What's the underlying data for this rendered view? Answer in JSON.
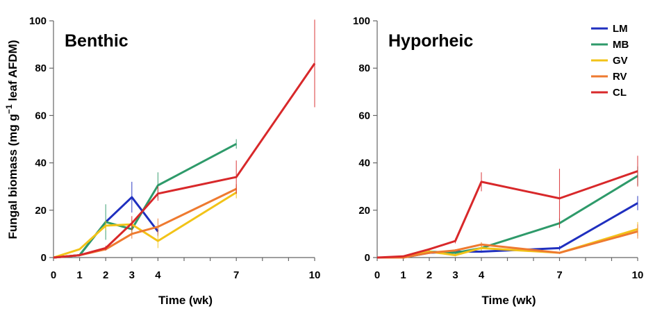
{
  "chart_data": {
    "type": "line",
    "ylabel_html": [
      "Fungal biomass (mg g",
      "−1",
      " leaf AFDM)"
    ],
    "xlabel": "Time (wk)",
    "xticks": [
      0,
      1,
      2,
      3,
      4,
      7,
      10
    ],
    "xlim": [
      0,
      10
    ],
    "ylim": [
      0,
      100
    ],
    "yticks": [
      0,
      20,
      40,
      60,
      80,
      100
    ],
    "legend_position": "top-right of right panel",
    "legend": [
      "LM",
      "MB",
      "GV",
      "RV",
      "CL"
    ],
    "colors": {
      "LM": "#1f2fbf",
      "MB": "#2e9a6a",
      "GV": "#f2c318",
      "RV": "#ee7a30",
      "CL": "#d8282a"
    },
    "panels": [
      {
        "title": "Benthic",
        "series": [
          {
            "name": "LM",
            "x": [
              0,
              1,
              2,
              3,
              4
            ],
            "y": [
              0,
              1,
              15,
              25.5,
              11
            ],
            "err": [
              0,
              0,
              0,
              6.5,
              2
            ]
          },
          {
            "name": "MB",
            "x": [
              0,
              1,
              2,
              3,
              4,
              7
            ],
            "y": [
              0,
              1,
              15,
              12,
              30.5,
              48
            ],
            "err": [
              0,
              0,
              7.5,
              2,
              5.5,
              2
            ]
          },
          {
            "name": "GV",
            "x": [
              0,
              1,
              2,
              3,
              4,
              7
            ],
            "y": [
              0,
              3.5,
              13.5,
              14,
              7,
              27.5
            ],
            "err": [
              0,
              0,
              2,
              2,
              3,
              2.5
            ]
          },
          {
            "name": "RV",
            "x": [
              0,
              1,
              2,
              3,
              4,
              7
            ],
            "y": [
              0,
              1,
              3.5,
              10,
              13,
              29
            ],
            "err": [
              0,
              0,
              0.5,
              2,
              3.5,
              2
            ]
          },
          {
            "name": "CL",
            "x": [
              0,
              1,
              2,
              3,
              4,
              7,
              10
            ],
            "y": [
              0,
              1,
              4,
              14.5,
              27,
              34,
              82
            ],
            "err": [
              0,
              0,
              1,
              3,
              3,
              7,
              18.5
            ]
          }
        ]
      },
      {
        "title": "Hyporheic",
        "series": [
          {
            "name": "LM",
            "x": [
              0,
              1,
              2,
              3,
              4,
              7,
              10
            ],
            "y": [
              0,
              0,
              2,
              2.5,
              2.5,
              4,
              23
            ],
            "err": [
              0,
              0,
              0,
              0.5,
              0.5,
              1,
              3
            ]
          },
          {
            "name": "MB",
            "x": [
              0,
              1,
              2,
              3,
              4,
              7,
              10
            ],
            "y": [
              0,
              0,
              2.5,
              2,
              4,
              14.5,
              34.5
            ],
            "err": [
              0,
              0,
              0.5,
              0.5,
              1,
              2,
              4
            ]
          },
          {
            "name": "GV",
            "x": [
              0,
              1,
              2,
              3,
              4,
              7,
              10
            ],
            "y": [
              0,
              0,
              2.5,
              1,
              4,
              2,
              12
            ],
            "err": [
              0,
              0,
              0.5,
              0.5,
              1,
              0.5,
              3
            ]
          },
          {
            "name": "RV",
            "x": [
              0,
              1,
              2,
              3,
              4,
              7,
              10
            ],
            "y": [
              0,
              0,
              2,
              3,
              5.5,
              2,
              11
            ],
            "err": [
              0,
              0,
              0.5,
              0.5,
              1,
              0.5,
              3
            ]
          },
          {
            "name": "CL",
            "x": [
              0,
              1,
              2,
              3,
              4,
              7,
              10
            ],
            "y": [
              0,
              0.5,
              3.5,
              7,
              32,
              25,
              36.5
            ],
            "err": [
              0,
              0,
              0.5,
              1,
              4,
              12.5,
              6.5
            ]
          }
        ]
      }
    ]
  }
}
